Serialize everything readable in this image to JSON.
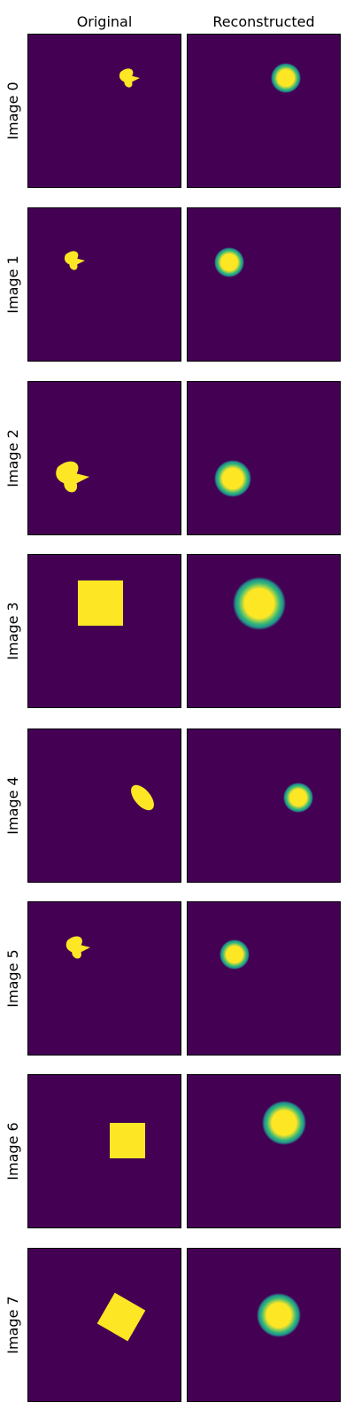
{
  "columns": [
    "Original",
    "Reconstructed"
  ],
  "colors": {
    "background": "#440154",
    "shape_fill": "#fde725",
    "blob_mid": "#21918c",
    "frame": "#000000"
  },
  "rows": [
    {
      "label": "Image 0",
      "original": {
        "shape": "heart-blob"
      },
      "reconstructed": {
        "shape": "gaussian-blob"
      }
    },
    {
      "label": "Image 1",
      "original": {
        "shape": "heart-blob"
      },
      "reconstructed": {
        "shape": "gaussian-blob"
      }
    },
    {
      "label": "Image 2",
      "original": {
        "shape": "heart-blob"
      },
      "reconstructed": {
        "shape": "gaussian-blob"
      }
    },
    {
      "label": "Image 3",
      "original": {
        "shape": "square"
      },
      "reconstructed": {
        "shape": "gaussian-blob"
      }
    },
    {
      "label": "Image 4",
      "original": {
        "shape": "ellipse"
      },
      "reconstructed": {
        "shape": "gaussian-blob"
      }
    },
    {
      "label": "Image 5",
      "original": {
        "shape": "heart-blob"
      },
      "reconstructed": {
        "shape": "gaussian-blob"
      }
    },
    {
      "label": "Image 6",
      "original": {
        "shape": "square"
      },
      "reconstructed": {
        "shape": "gaussian-blob"
      }
    },
    {
      "label": "Image 7",
      "original": {
        "shape": "rotated-square"
      },
      "reconstructed": {
        "shape": "gaussian-blob"
      }
    }
  ]
}
